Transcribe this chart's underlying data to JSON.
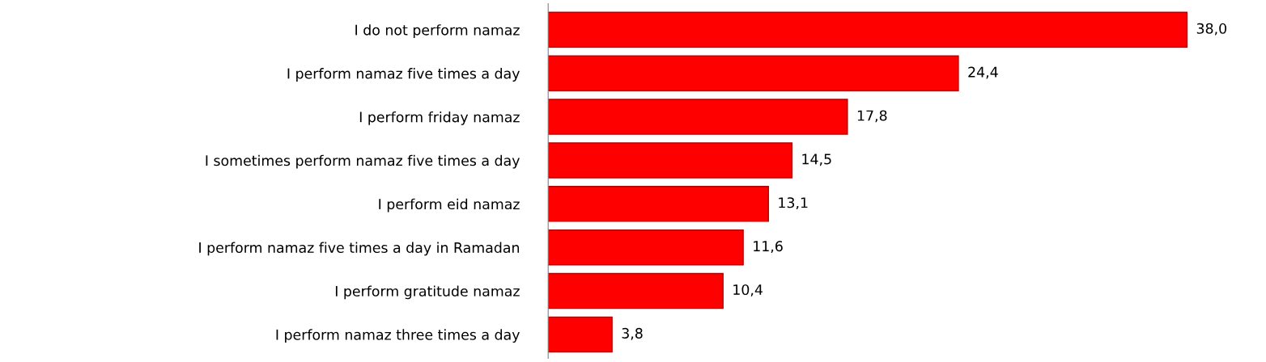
{
  "chart_data": {
    "type": "bar",
    "orientation": "horizontal",
    "categories": [
      "I do not perform namaz",
      "I perform namaz five times a day",
      "I perform friday namaz",
      "I sometimes perform namaz five times a day",
      "I perform eid namaz",
      "I perform namaz five times a day in Ramadan",
      "I perform gratitude namaz",
      "I perform namaz three times a day"
    ],
    "values": [
      38.0,
      24.4,
      17.8,
      14.5,
      13.1,
      11.6,
      10.4,
      3.8
    ],
    "value_labels": [
      "38,0",
      "24,4",
      "17,8",
      "14,5",
      "13,1",
      "11,6",
      "10,4",
      "3,8"
    ],
    "color": "#ff0000",
    "grid": false,
    "legend": false
  }
}
